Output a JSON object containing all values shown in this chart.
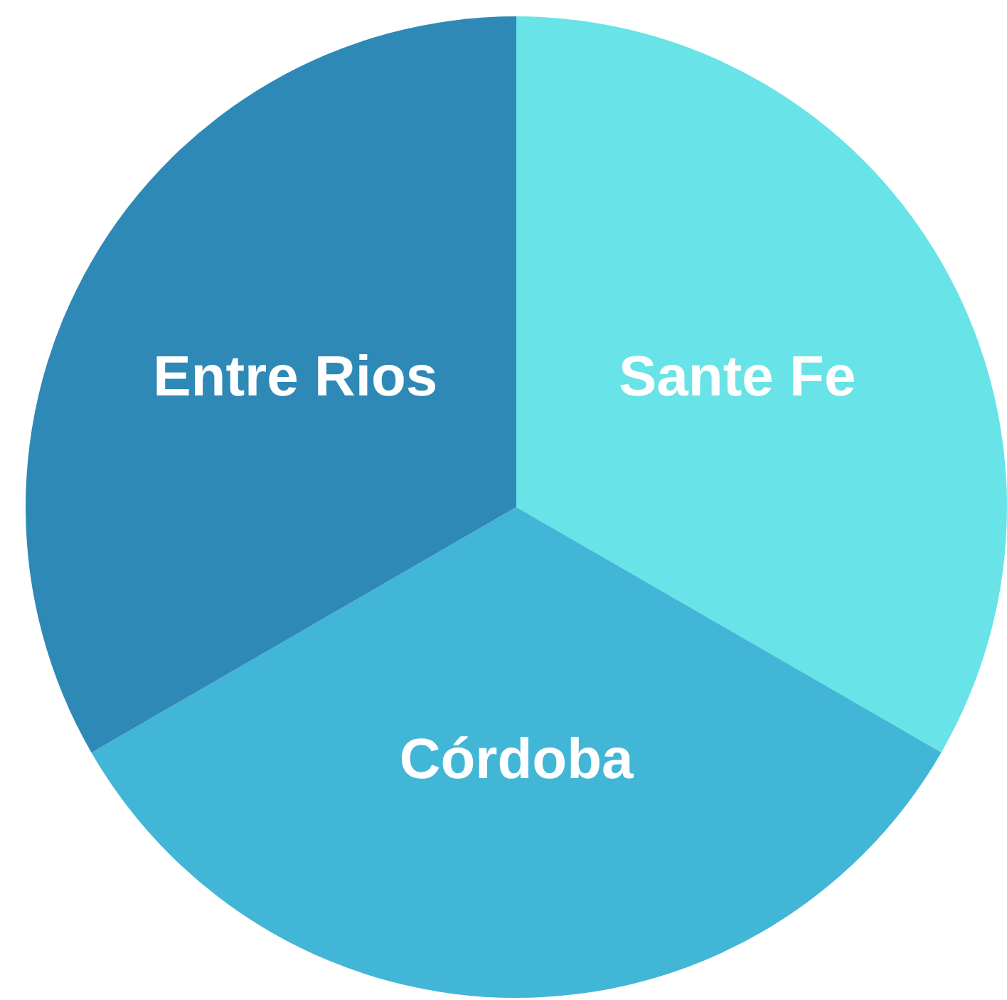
{
  "chart_data": {
    "type": "pie",
    "categories": [
      "Sante Fe",
      "Córdoba",
      "Entre Rios"
    ],
    "values": [
      33.33,
      33.33,
      33.34
    ],
    "colors": [
      "#68e3e7",
      "#42b6d6",
      "#2e89b6"
    ],
    "legend": false
  }
}
